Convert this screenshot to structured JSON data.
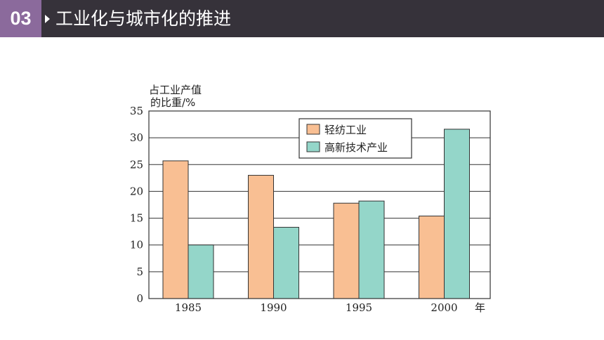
{
  "header": {
    "section_number": "03",
    "title": "工业化与城市化的推进",
    "chevron_icon": "chevron-right-icon"
  },
  "colors": {
    "header_bg": "#36323a",
    "badge_bg": "#8b6a9c",
    "light_textile": "#f9bf93",
    "high_tech": "#94d6c9",
    "grid": "#333333"
  },
  "chart_data": {
    "type": "bar",
    "ylabel_line1": "占工业产值",
    "ylabel_line2": "的比重/%",
    "xlabel": "年",
    "categories": [
      "1985",
      "1990",
      "1995",
      "2000"
    ],
    "series": [
      {
        "name": "轻纺工业",
        "values": [
          25.7,
          23.0,
          17.8,
          15.4
        ]
      },
      {
        "name": "高新技术产业",
        "values": [
          10.0,
          13.3,
          18.2,
          31.6
        ]
      }
    ],
    "ylim": [
      0,
      35
    ],
    "yticks": [
      "0",
      "5",
      "10",
      "15",
      "20",
      "25",
      "30",
      "35"
    ],
    "grid": true,
    "legend_position": "top-center-right"
  }
}
